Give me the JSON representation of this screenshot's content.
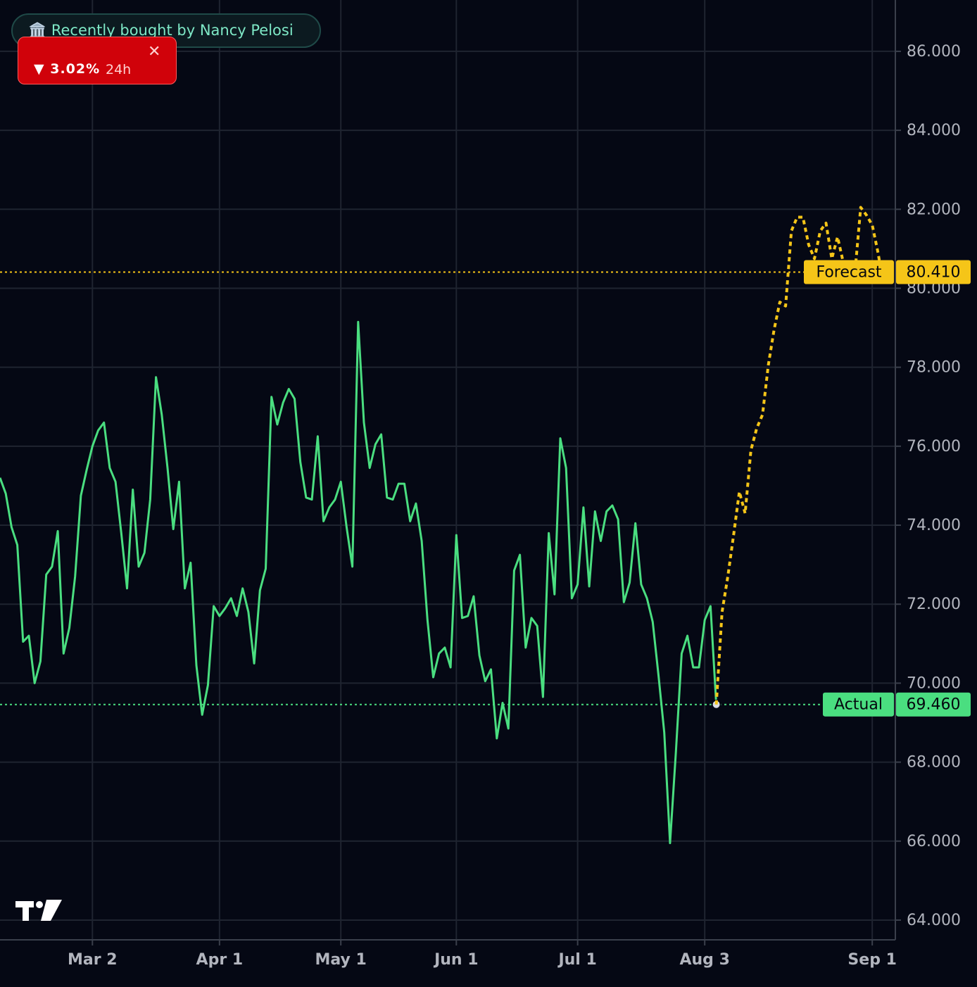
{
  "chart_data": {
    "type": "line",
    "annotations": [
      "Recently bought by Nancy Pelosi",
      "3.02%",
      "24h"
    ],
    "xlim": [
      0,
      155
    ],
    "xticks": [
      {
        "value": 16,
        "label": "Mar 2"
      },
      {
        "value": 38,
        "label": "Apr 1"
      },
      {
        "value": 59,
        "label": "May 1"
      },
      {
        "value": 79,
        "label": "Jun 1"
      },
      {
        "value": 100,
        "label": "Jul 1"
      },
      {
        "value": 122,
        "label": "Aug 3"
      },
      {
        "value": 151,
        "label": "Sep 1"
      }
    ],
    "ylim": [
      63.5,
      87.3
    ],
    "yticks": [
      {
        "value": 64,
        "label": "64.000"
      },
      {
        "value": 66,
        "label": "66.000"
      },
      {
        "value": 68,
        "label": "68.000"
      },
      {
        "value": 70,
        "label": "70.000"
      },
      {
        "value": 72,
        "label": "72.000"
      },
      {
        "value": 74,
        "label": "74.000"
      },
      {
        "value": 76,
        "label": "76.000"
      },
      {
        "value": 78,
        "label": "78.000"
      },
      {
        "value": 80,
        "label": "80.000"
      },
      {
        "value": 82,
        "label": "82.000"
      },
      {
        "value": 84,
        "label": "84.000"
      },
      {
        "value": 86,
        "label": "86.000"
      }
    ],
    "grid": true,
    "series": [
      {
        "name": "Actual",
        "color": "#4ade80",
        "dashed": false,
        "values": [
          75.2,
          74.8,
          73.95,
          73.5,
          71.05,
          71.2,
          70.0,
          70.55,
          72.75,
          72.95,
          73.85,
          70.75,
          71.4,
          72.7,
          74.75,
          75.4,
          76.0,
          76.4,
          76.6,
          75.45,
          75.1,
          73.8,
          72.4,
          74.9,
          72.95,
          73.3,
          74.65,
          77.75,
          76.8,
          75.45,
          73.9,
          75.1,
          72.4,
          73.05,
          70.45,
          69.2,
          69.95,
          71.95,
          71.7,
          71.9,
          72.15,
          71.7,
          72.4,
          71.8,
          70.5,
          72.35,
          72.9,
          77.25,
          76.55,
          77.1,
          77.45,
          77.2,
          75.6,
          74.7,
          74.65,
          76.25,
          74.1,
          74.45,
          74.65,
          75.1,
          73.95,
          72.95,
          79.15,
          76.6,
          75.45,
          76.05,
          76.3,
          74.7,
          74.65,
          75.05,
          75.05,
          74.1,
          74.55,
          73.6,
          71.6,
          70.15,
          70.75,
          70.9,
          70.4,
          73.75,
          71.65,
          71.7,
          72.2,
          70.7,
          70.05,
          70.35,
          68.6,
          69.5,
          68.85,
          72.85,
          73.25,
          70.9,
          71.65,
          71.45,
          69.65,
          73.8,
          72.25,
          76.2,
          75.45,
          72.15,
          72.5,
          74.45,
          72.45,
          74.35,
          73.6,
          74.35,
          74.5,
          74.15,
          72.05,
          72.55,
          74.05,
          72.5,
          72.15,
          71.55,
          70.2,
          68.75,
          65.95,
          68.25,
          70.75,
          71.2,
          70.4,
          70.4,
          71.6,
          71.95,
          69.46,
          null,
          null,
          null,
          null,
          null,
          null,
          null,
          null,
          null,
          null,
          null,
          null,
          null,
          null,
          null,
          null,
          null,
          null,
          null,
          null,
          null,
          null,
          null,
          null,
          null,
          null,
          null,
          null,
          null
        ],
        "price_line": {
          "value": 69.46,
          "label": "69.460"
        }
      },
      {
        "name": "Forecast",
        "color": "#f5c518",
        "dashed": true,
        "values": [
          null,
          null,
          null,
          null,
          null,
          null,
          null,
          null,
          null,
          null,
          null,
          null,
          null,
          null,
          null,
          null,
          null,
          null,
          null,
          null,
          null,
          null,
          null,
          null,
          null,
          null,
          null,
          null,
          null,
          null,
          null,
          null,
          null,
          null,
          null,
          null,
          null,
          null,
          null,
          null,
          null,
          null,
          null,
          null,
          null,
          null,
          null,
          null,
          null,
          null,
          null,
          null,
          null,
          null,
          null,
          null,
          null,
          null,
          null,
          null,
          null,
          null,
          null,
          null,
          null,
          null,
          null,
          null,
          null,
          null,
          null,
          null,
          null,
          null,
          null,
          null,
          null,
          null,
          null,
          null,
          null,
          null,
          null,
          null,
          null,
          null,
          null,
          null,
          null,
          null,
          null,
          null,
          null,
          null,
          null,
          null,
          null,
          null,
          null,
          null,
          null,
          null,
          null,
          null,
          null,
          null,
          null,
          null,
          null,
          null,
          null,
          null,
          null,
          null,
          null,
          null,
          null,
          null,
          null,
          null,
          null,
          null,
          null,
          null,
          69.46,
          71.8,
          72.7,
          73.75,
          74.85,
          74.3,
          75.9,
          76.45,
          76.8,
          78.05,
          78.95,
          79.65,
          79.55,
          81.45,
          81.8,
          81.8,
          81.1,
          80.75,
          81.45,
          81.65,
          80.75,
          81.3,
          80.65,
          80.2,
          80.4,
          82.05,
          81.85,
          81.6,
          80.9,
          80.05
        ],
        "price_line": {
          "value": 80.41,
          "label": "80.410"
        }
      }
    ]
  }
}
